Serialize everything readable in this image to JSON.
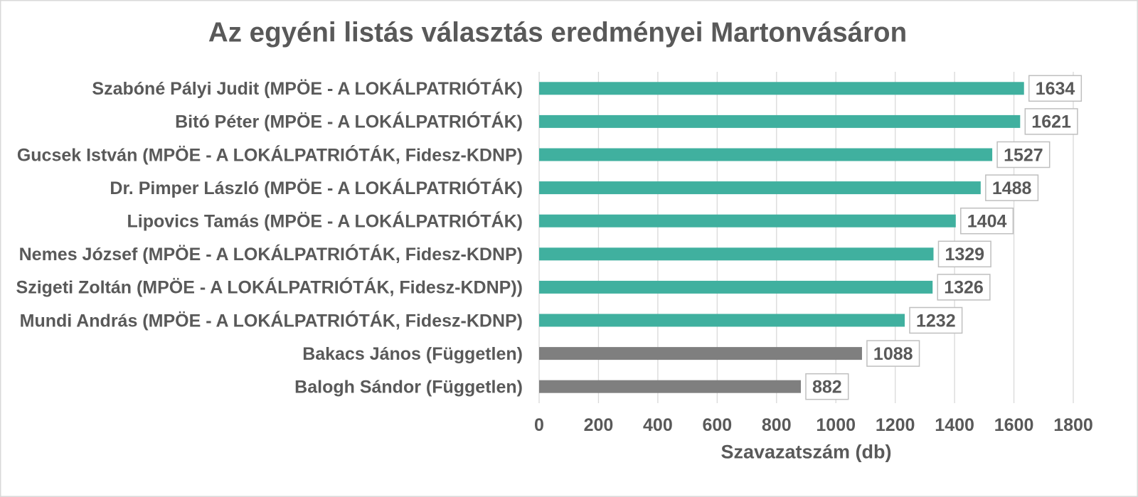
{
  "chart_data": {
    "type": "bar",
    "orientation": "horizontal",
    "title": "Az egyéni listás választás eredményei Martonvásáron",
    "xlabel": "Szavazatszám (db)",
    "ylabel": "",
    "categories": [
      "Szabóné Pályi Judit (MPÖE - A LOKÁLPATRIÓTÁK)",
      "Bitó Péter (MPÖE - A LOKÁLPATRIÓTÁK)",
      "Gucsek István (MPÖE - A LOKÁLPATRIÓTÁK, Fidesz-KDNP)",
      "Dr. Pimper László (MPÖE - A LOKÁLPATRIÓTÁK)",
      "Lipovics Tamás (MPÖE - A LOKÁLPATRIÓTÁK)",
      "Nemes József (MPÖE - A LOKÁLPATRIÓTÁK, Fidesz-KDNP)",
      "Szigeti Zoltán (MPÖE - A LOKÁLPATRIÓTÁK, Fidesz-KDNP))",
      "Mundi András (MPÖE - A LOKÁLPATRIÓTÁK, Fidesz-KDNP)",
      "Bakacs János (Független)",
      "Balogh Sándor (Független)"
    ],
    "values": [
      1634,
      1621,
      1527,
      1488,
      1404,
      1329,
      1326,
      1232,
      1088,
      882
    ],
    "bar_colors": [
      "#40B09F",
      "#40B09F",
      "#40B09F",
      "#40B09F",
      "#40B09F",
      "#40B09F",
      "#40B09F",
      "#40B09F",
      "#7F7F7F",
      "#7F7F7F"
    ],
    "xlim": [
      0,
      1800
    ],
    "xticks": [
      0,
      200,
      400,
      600,
      800,
      1000,
      1200,
      1400,
      1600,
      1800
    ],
    "grid": true,
    "legend": "none",
    "data_labels": true
  }
}
